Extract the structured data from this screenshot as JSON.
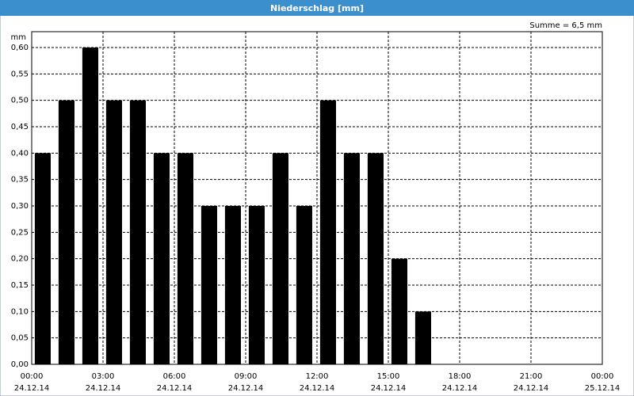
{
  "window_title": "Niederschlag [mm]",
  "chart_data": {
    "type": "bar",
    "y_unit": "mm",
    "annotation": "Summe = 6,5 mm",
    "x": [
      0,
      1,
      2,
      3,
      4,
      5,
      6,
      7,
      8,
      9,
      10,
      11,
      12,
      13,
      14,
      15,
      16
    ],
    "values": [
      0.4,
      0.5,
      0.6,
      0.5,
      0.5,
      0.4,
      0.4,
      0.3,
      0.3,
      0.3,
      0.4,
      0.3,
      0.5,
      0.4,
      0.4,
      0.2,
      0.1
    ],
    "color": "#000000",
    "xlim": [
      0,
      24
    ],
    "xticks": [
      {
        "value": 0,
        "label": "00:00",
        "date": "24.12.14"
      },
      {
        "value": 3,
        "label": "03:00",
        "date": "24.12.14"
      },
      {
        "value": 6,
        "label": "06:00",
        "date": "24.12.14"
      },
      {
        "value": 9,
        "label": "09:00",
        "date": "24.12.14"
      },
      {
        "value": 12,
        "label": "12:00",
        "date": "24.12.14"
      },
      {
        "value": 15,
        "label": "15:00",
        "date": "24.12.14"
      },
      {
        "value": 18,
        "label": "18:00",
        "date": "24.12.14"
      },
      {
        "value": 21,
        "label": "21:00",
        "date": "24.12.14"
      },
      {
        "value": 24,
        "label": "00:00",
        "date": "25.12.14"
      }
    ],
    "ylim": [
      0,
      0.63
    ],
    "yticks": [
      {
        "value": 0,
        "label": "0,00"
      },
      {
        "value": 0.05,
        "label": "0,05"
      },
      {
        "value": 0.1,
        "label": "0,10"
      },
      {
        "value": 0.15,
        "label": "0,15"
      },
      {
        "value": 0.2,
        "label": "0,20"
      },
      {
        "value": 0.25,
        "label": "0,25"
      },
      {
        "value": 0.3,
        "label": "0,30"
      },
      {
        "value": 0.35,
        "label": "0,35"
      },
      {
        "value": 0.4,
        "label": "0,40"
      },
      {
        "value": 0.45,
        "label": "0,45"
      },
      {
        "value": 0.5,
        "label": "0,50"
      },
      {
        "value": 0.55,
        "label": "0,55"
      },
      {
        "value": 0.6,
        "label": "0,60"
      }
    ],
    "grid": true
  }
}
